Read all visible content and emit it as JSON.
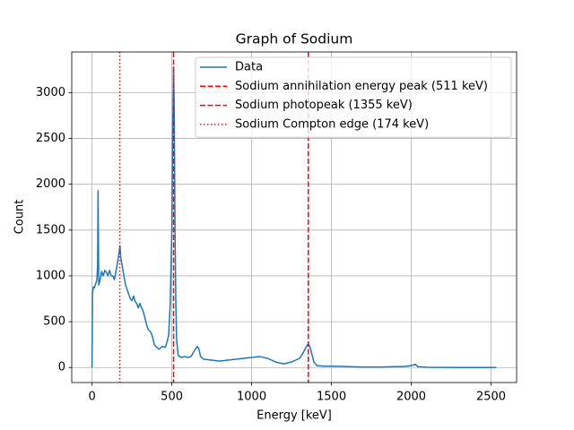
{
  "chart_data": {
    "type": "line",
    "title": "Graph of Sodium",
    "xlabel": "Energy [keV]",
    "ylabel": "Count",
    "x": [
      0,
      3,
      8,
      15,
      20,
      30,
      35,
      38,
      42,
      50,
      60,
      70,
      80,
      90,
      100,
      110,
      120,
      130,
      140,
      150,
      160,
      170,
      175,
      180,
      190,
      200,
      210,
      220,
      230,
      240,
      250,
      260,
      270,
      280,
      290,
      300,
      310,
      320,
      330,
      340,
      350,
      360,
      370,
      380,
      390,
      400,
      420,
      440,
      460,
      470,
      480,
      490,
      500,
      505,
      511,
      515,
      520,
      525,
      530,
      540,
      560,
      580,
      600,
      620,
      640,
      660,
      670,
      680,
      700,
      750,
      800,
      850,
      900,
      950,
      1000,
      1050,
      1100,
      1150,
      1200,
      1250,
      1300,
      1320,
      1340,
      1355,
      1370,
      1390,
      1410,
      1450,
      1500,
      1600,
      1700,
      1800,
      1900,
      1950,
      2000,
      2025,
      2040,
      2100,
      2300,
      2533
    ],
    "series": [
      {
        "name": "Data",
        "color": "#1f77b4",
        "values": [
          0,
          800,
          880,
          870,
          900,
          950,
          1100,
          1930,
          900,
          950,
          1050,
          1000,
          1060,
          1040,
          1000,
          1060,
          1000,
          1000,
          960,
          1050,
          1150,
          1260,
          1330,
          1200,
          1100,
          1000,
          900,
          850,
          800,
          750,
          730,
          780,
          720,
          700,
          650,
          700,
          650,
          620,
          550,
          480,
          420,
          400,
          380,
          330,
          250,
          230,
          200,
          230,
          220,
          280,
          350,
          700,
          1500,
          2500,
          3280,
          2800,
          1500,
          700,
          300,
          130,
          110,
          120,
          110,
          120,
          180,
          230,
          200,
          120,
          90,
          80,
          70,
          80,
          90,
          100,
          110,
          120,
          100,
          60,
          40,
          60,
          100,
          150,
          220,
          260,
          200,
          60,
          20,
          15,
          15,
          10,
          5,
          5,
          10,
          10,
          20,
          35,
          10,
          2,
          0,
          0
        ]
      }
    ],
    "vlines": [
      {
        "name": "Sodium annihilation energy peak (511 keV)",
        "x": 511,
        "color": "#ff0000",
        "style": "dashed"
      },
      {
        "name": "Sodium photopeak (1355 keV)",
        "x": 1355,
        "color": "#ff0000",
        "style": "dashed"
      },
      {
        "name": "Sodium Compton edge (174 keV)",
        "x": 174,
        "color": "#ff0000",
        "style": "dotted"
      }
    ],
    "xlim": [
      -127,
      2660
    ],
    "ylim": [
      -164,
      3444
    ],
    "xticks": [
      0,
      500,
      1000,
      1500,
      2000,
      2500
    ],
    "yticks": [
      0,
      500,
      1000,
      1500,
      2000,
      2500,
      3000
    ],
    "grid": true,
    "legend": "upper right"
  }
}
